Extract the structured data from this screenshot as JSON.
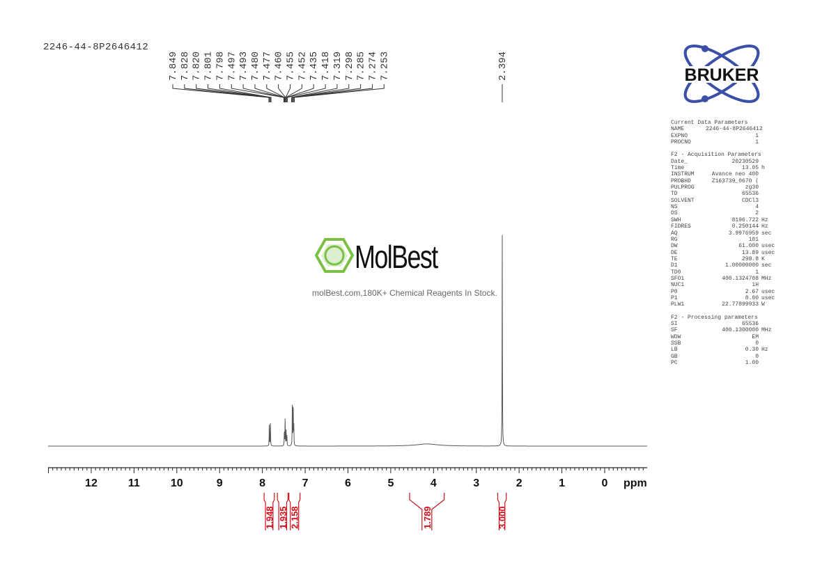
{
  "title": "2246-44-8P2646412",
  "logo_bruker": "BRUKER",
  "watermark": {
    "word": "MolBest",
    "tagline": "molBest.com,180K+ Chemical Reagents In Stock.",
    "color": "#7ac143"
  },
  "parameters": {
    "current": {
      "heading": "Current Data Parameters",
      "rows": [
        {
          "name": "NAME",
          "value": "2246-44-8P2646412",
          "unit": ""
        },
        {
          "name": "EXPNO",
          "value": "1",
          "unit": ""
        },
        {
          "name": "PROCNO",
          "value": "1",
          "unit": ""
        }
      ]
    },
    "acquisition": {
      "heading": "F2 - Acquisition Parameters",
      "rows": [
        {
          "name": "Date_",
          "value": "20230529",
          "unit": ""
        },
        {
          "name": "Time",
          "value": "13.05",
          "unit": "h"
        },
        {
          "name": "INSTRUM",
          "value": "Avance neo 400",
          "unit": ""
        },
        {
          "name": "PROBHD",
          "value": "Z163739_0670 (",
          "unit": ""
        },
        {
          "name": "PULPROG",
          "value": "zg30",
          "unit": ""
        },
        {
          "name": "TD",
          "value": "65536",
          "unit": ""
        },
        {
          "name": "SOLVENT",
          "value": "CDCl3",
          "unit": ""
        },
        {
          "name": "NS",
          "value": "4",
          "unit": ""
        },
        {
          "name": "DS",
          "value": "2",
          "unit": ""
        },
        {
          "name": "SWH",
          "value": "8196.722",
          "unit": "Hz"
        },
        {
          "name": "FIDRES",
          "value": "0.250144",
          "unit": "Hz"
        },
        {
          "name": "AQ",
          "value": "3.9976959",
          "unit": "sec"
        },
        {
          "name": "RG",
          "value": "101",
          "unit": ""
        },
        {
          "name": "DW",
          "value": "61.000",
          "unit": "usec"
        },
        {
          "name": "DE",
          "value": "13.89",
          "unit": "usec"
        },
        {
          "name": "TE",
          "value": "298.8",
          "unit": "K"
        },
        {
          "name": "D1",
          "value": "1.00000000",
          "unit": "sec"
        },
        {
          "name": "TD0",
          "value": "1",
          "unit": ""
        },
        {
          "name": "SFO1",
          "value": "400.1324708",
          "unit": "MHz"
        },
        {
          "name": "NUC1",
          "value": "1H",
          "unit": ""
        },
        {
          "name": "P0",
          "value": "2.67",
          "unit": "usec"
        },
        {
          "name": "P1",
          "value": "8.00",
          "unit": "usec"
        },
        {
          "name": "PLW1",
          "value": "22.77899933",
          "unit": "W"
        }
      ]
    },
    "processing": {
      "heading": "F2 - Processing parameters",
      "rows": [
        {
          "name": "SI",
          "value": "65536",
          "unit": ""
        },
        {
          "name": "SF",
          "value": "400.1300000",
          "unit": "MHz"
        },
        {
          "name": "WDW",
          "value": "EM",
          "unit": ""
        },
        {
          "name": "SSB",
          "value": "0",
          "unit": ""
        },
        {
          "name": "LB",
          "value": "0.30",
          "unit": "Hz"
        },
        {
          "name": "GB",
          "value": "0",
          "unit": ""
        },
        {
          "name": "PC",
          "value": "1.00",
          "unit": ""
        }
      ]
    }
  },
  "chart_data": {
    "type": "line",
    "xlabel": "ppm",
    "xlim": [
      13.0,
      -1.0
    ],
    "x_reversed": true,
    "xticks": [
      "12",
      "11",
      "10",
      "9",
      "8",
      "7",
      "6",
      "5",
      "4",
      "3",
      "2",
      "1",
      "0"
    ],
    "grid": false,
    "line_color": "#555555",
    "integral_color": "#d0101a",
    "peak_labels": [
      "7.849",
      "7.828",
      "7.820",
      "7.801",
      "7.798",
      "7.497",
      "7.493",
      "7.480",
      "7.477",
      "7.460",
      "7.455",
      "7.452",
      "7.435",
      "7.418",
      "7.319",
      "7.298",
      "7.285",
      "7.274",
      "7.253",
      "2.394"
    ],
    "peaks_relative_intensity": [
      {
        "ppm": 7.838,
        "intensity": 0.11
      },
      {
        "ppm": 7.812,
        "intensity": 0.11
      },
      {
        "ppm": 7.487,
        "intensity": 0.07
      },
      {
        "ppm": 7.468,
        "intensity": 0.13
      },
      {
        "ppm": 7.445,
        "intensity": 0.07
      },
      {
        "ppm": 7.427,
        "intensity": 0.05
      },
      {
        "ppm": 7.3,
        "intensity": 0.22
      },
      {
        "ppm": 7.28,
        "intensity": 0.2
      },
      {
        "ppm": 7.265,
        "intensity": 0.09
      },
      {
        "ppm": 2.394,
        "intensity": 1.0
      },
      {
        "ppm": 4.15,
        "intensity": 0.01,
        "broad": true
      }
    ],
    "integrals": [
      {
        "value": "1.948",
        "from": 7.96,
        "to": 7.72
      },
      {
        "value": "1.935",
        "from": 7.65,
        "to": 7.4
      },
      {
        "value": "2.158",
        "from": 7.38,
        "to": 7.12
      },
      {
        "value": "1.789",
        "from": 4.56,
        "to": 3.75
      },
      {
        "value": "3.000",
        "from": 2.5,
        "to": 2.3
      }
    ]
  }
}
